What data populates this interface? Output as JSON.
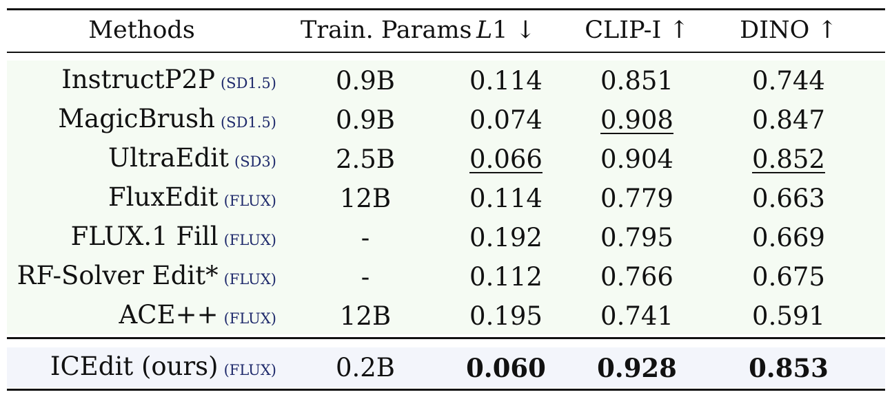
{
  "table": {
    "headers": {
      "methods": "Methods",
      "params": "Train. Params",
      "l1_var": "L",
      "l1_num": "1 ↓",
      "clip": "CLIP-I ↑",
      "dino": "DINO ↑"
    },
    "rows": [
      {
        "method": "InstructP2P",
        "base": "(SD1.5)",
        "params": "0.9B",
        "l1": "0.114",
        "clip": "0.851",
        "dino": "0.744"
      },
      {
        "method": "MagicBrush",
        "base": "(SD1.5)",
        "params": "0.9B",
        "l1": "0.074",
        "clip": "0.908",
        "dino": "0.847"
      },
      {
        "method": "UltraEdit",
        "base": "(SD3)",
        "params": "2.5B",
        "l1": "0.066",
        "clip": "0.904",
        "dino": "0.852"
      },
      {
        "method": "FluxEdit",
        "base": "(FLUX)",
        "params": "12B",
        "l1": "0.114",
        "clip": "0.779",
        "dino": "0.663"
      },
      {
        "method": "FLUX.1 Fill",
        "base": "(FLUX)",
        "params": "-",
        "l1": "0.192",
        "clip": "0.795",
        "dino": "0.669"
      },
      {
        "method": "RF-Solver Edit*",
        "base": "(FLUX)",
        "params": "-",
        "l1": "0.112",
        "clip": "0.766",
        "dino": "0.675"
      },
      {
        "method": "ACE++",
        "base": "(FLUX)",
        "params": "12B",
        "l1": "0.195",
        "clip": "0.741",
        "dino": "0.591"
      }
    ],
    "ours": {
      "method": "ICEdit (ours)",
      "base": "(FLUX)",
      "params": "0.2B",
      "l1": "0.060",
      "clip": "0.928",
      "dino": "0.853"
    }
  }
}
